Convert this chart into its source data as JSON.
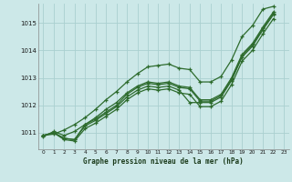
{
  "title": "Graphe pression niveau de la mer (hPa)",
  "bg_color": "#cce8e8",
  "grid_color": "#aad0d0",
  "line_color": "#2d6b2d",
  "marker_color": "#2d6b2d",
  "xlim": [
    -0.5,
    23.5
  ],
  "ylim": [
    1010.4,
    1015.7
  ],
  "yticks": [
    1011,
    1012,
    1013,
    1014,
    1015
  ],
  "xticks": [
    0,
    1,
    2,
    3,
    4,
    5,
    6,
    7,
    8,
    9,
    10,
    11,
    12,
    13,
    14,
    15,
    16,
    17,
    18,
    19,
    20,
    21,
    22,
    23
  ],
  "series": [
    [
      1010.9,
      1011.0,
      1010.75,
      1010.7,
      1011.15,
      1011.35,
      1011.6,
      1011.85,
      1012.2,
      1012.45,
      1012.6,
      1012.55,
      1012.6,
      1012.45,
      1012.4,
      1011.95,
      1011.95,
      1012.15,
      1012.75,
      1013.6,
      1014.0,
      1014.6,
      1015.15
    ],
    [
      1010.9,
      1011.0,
      1010.8,
      1010.75,
      1011.25,
      1011.45,
      1011.7,
      1011.95,
      1012.3,
      1012.55,
      1012.7,
      1012.65,
      1012.7,
      1012.55,
      1012.1,
      1012.1,
      1012.1,
      1012.3,
      1012.9,
      1013.75,
      1014.15,
      1014.75,
      1015.3
    ],
    [
      1010.9,
      1011.0,
      1010.8,
      1010.75,
      1011.3,
      1011.5,
      1011.75,
      1012.0,
      1012.4,
      1012.65,
      1012.8,
      1012.75,
      1012.8,
      1012.65,
      1012.6,
      1012.15,
      1012.15,
      1012.35,
      1012.95,
      1013.8,
      1014.2,
      1014.8,
      1015.35
    ],
    [
      1010.85,
      1011.05,
      1010.9,
      1011.05,
      1011.3,
      1011.55,
      1011.85,
      1012.1,
      1012.45,
      1012.7,
      1012.85,
      1012.8,
      1012.85,
      1012.7,
      1012.65,
      1012.2,
      1012.2,
      1012.4,
      1013.0,
      1013.85,
      1014.25,
      1014.85,
      1015.4
    ],
    [
      1010.9,
      1010.95,
      1011.1,
      1011.3,
      1011.55,
      1011.85,
      1012.2,
      1012.5,
      1012.85,
      1013.15,
      1013.4,
      1013.45,
      1013.5,
      1013.35,
      1013.3,
      1012.85,
      1012.85,
      1013.05,
      1013.65,
      1014.5,
      1014.9,
      1015.5,
      1015.6
    ]
  ]
}
